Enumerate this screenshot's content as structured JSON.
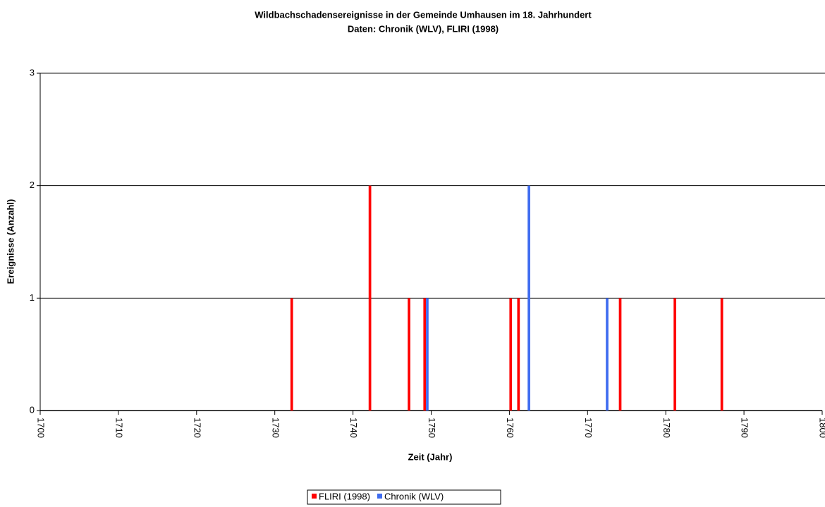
{
  "chart_data": {
    "type": "bar",
    "title": "Wildbachschadensereignisse in der Gemeinde Umhausen im 18. Jahrhundert",
    "subtitle": "Daten: Chronik (WLV), FLIRI (1998)",
    "x_label": "Zeit (Jahr)",
    "y_label": "Ereignisse (Anzahl)",
    "xlim": [
      1700,
      1800
    ],
    "xticks": [
      1700,
      1710,
      1720,
      1730,
      1740,
      1750,
      1760,
      1770,
      1780,
      1790,
      1800
    ],
    "ylim": [
      0,
      3
    ],
    "yticks": [
      0,
      1,
      2,
      3
    ],
    "grid": true,
    "legend": "bottom",
    "series": [
      {
        "name": "FLIRI (1998)",
        "color": "#ff0000",
        "x": [
          1732,
          1742,
          1747,
          1749,
          1760,
          1761,
          1774,
          1781,
          1787
        ],
        "values": [
          1,
          2,
          1,
          1,
          1,
          1,
          1,
          1,
          1
        ]
      },
      {
        "name": "Chronik (WLV)",
        "color": "#3f6cf0",
        "x": [
          1749,
          1762,
          1772
        ],
        "values": [
          1,
          2,
          1
        ]
      }
    ]
  }
}
